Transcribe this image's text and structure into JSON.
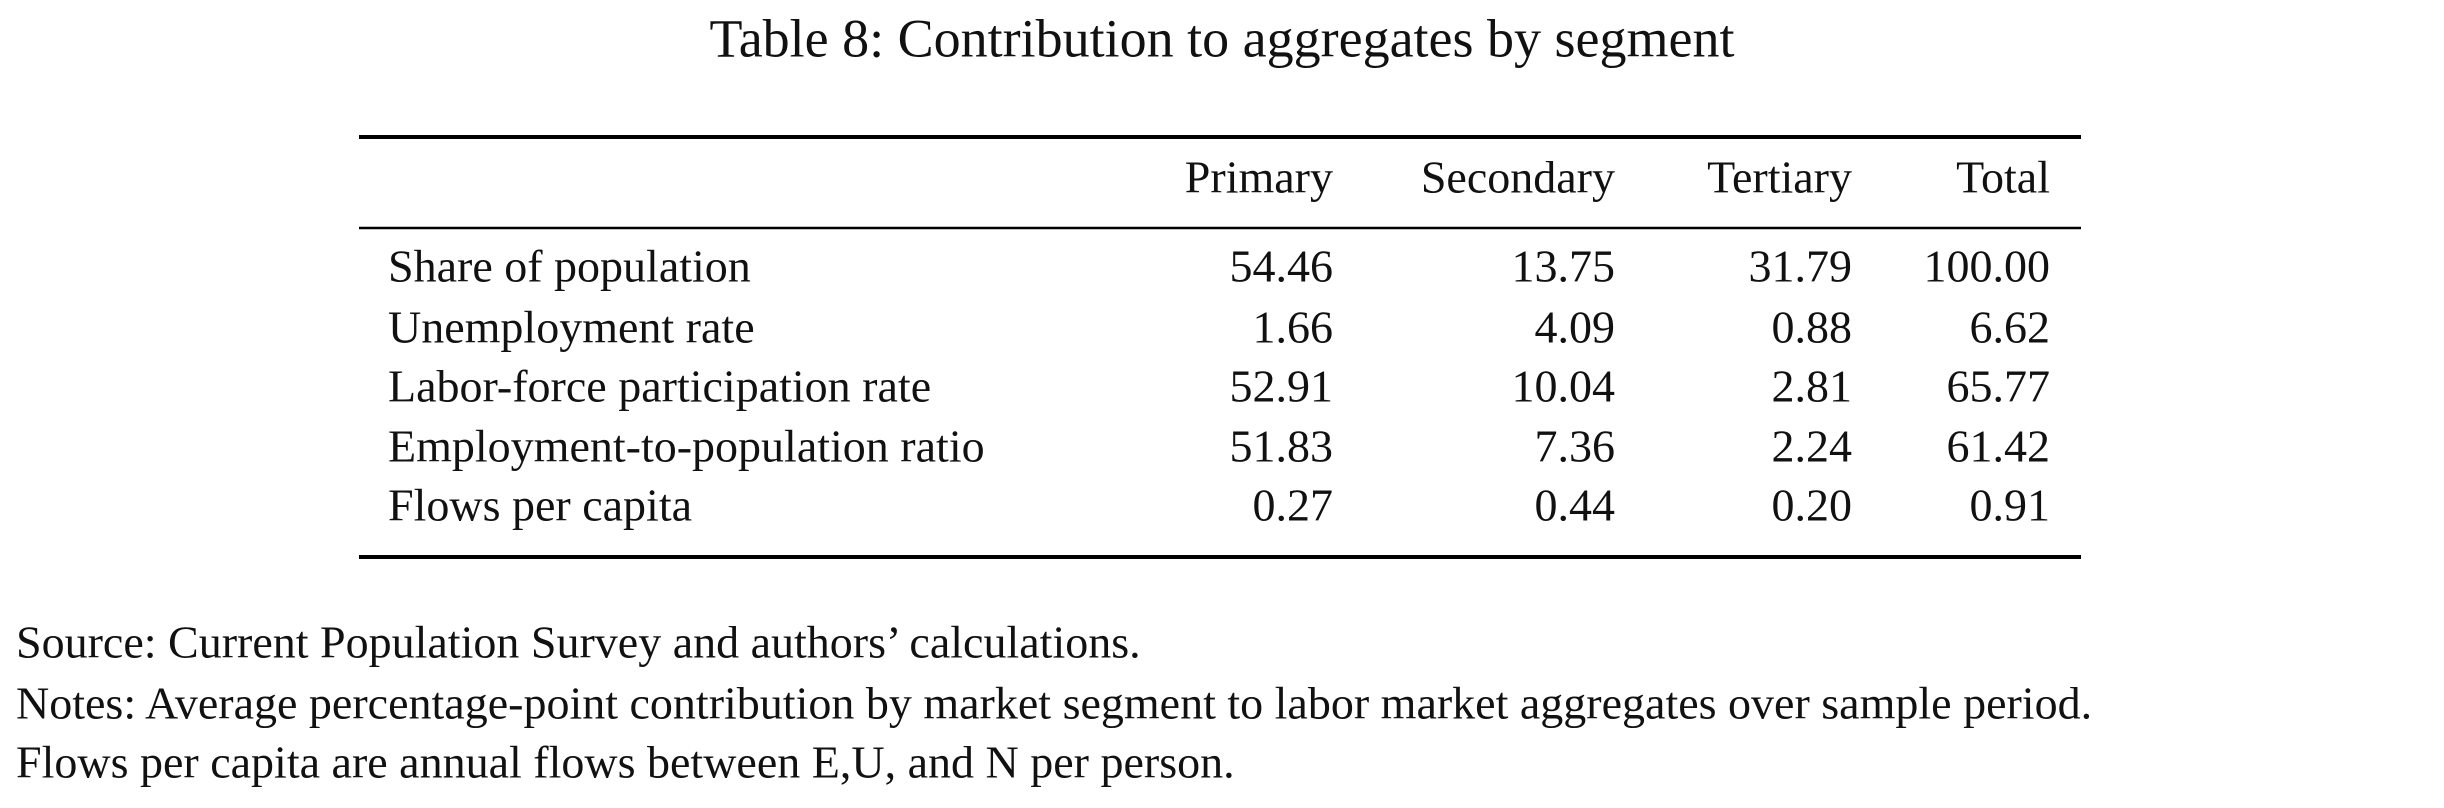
{
  "header": {
    "title": "Table 8: Contribution to aggregates by segment"
  },
  "table": {
    "columns": [
      "Primary",
      "Secondary",
      "Tertiary",
      "Total"
    ],
    "rows": [
      {
        "label": "Share of population",
        "values": [
          "54.46",
          "13.75",
          "31.79",
          "100.00"
        ]
      },
      {
        "label": "Unemployment rate",
        "values": [
          "1.66",
          "4.09",
          "0.88",
          "6.62"
        ]
      },
      {
        "label": "Labor-force participation rate",
        "values": [
          "52.91",
          "10.04",
          "2.81",
          "65.77"
        ]
      },
      {
        "label": "Employment-to-population ratio",
        "values": [
          "51.83",
          "7.36",
          "2.24",
          "61.42"
        ]
      },
      {
        "label": "Flows per capita",
        "values": [
          "0.27",
          "0.44",
          "0.20",
          "0.91"
        ]
      }
    ]
  },
  "footer": {
    "source": "Source: Current Population Survey and authors’ calculations.",
    "notes": [
      "Notes: Average percentage-point contribution by market segment to labor market aggregates over sample period.",
      "Flows per capita are annual flows between E,U, and N per person."
    ]
  }
}
